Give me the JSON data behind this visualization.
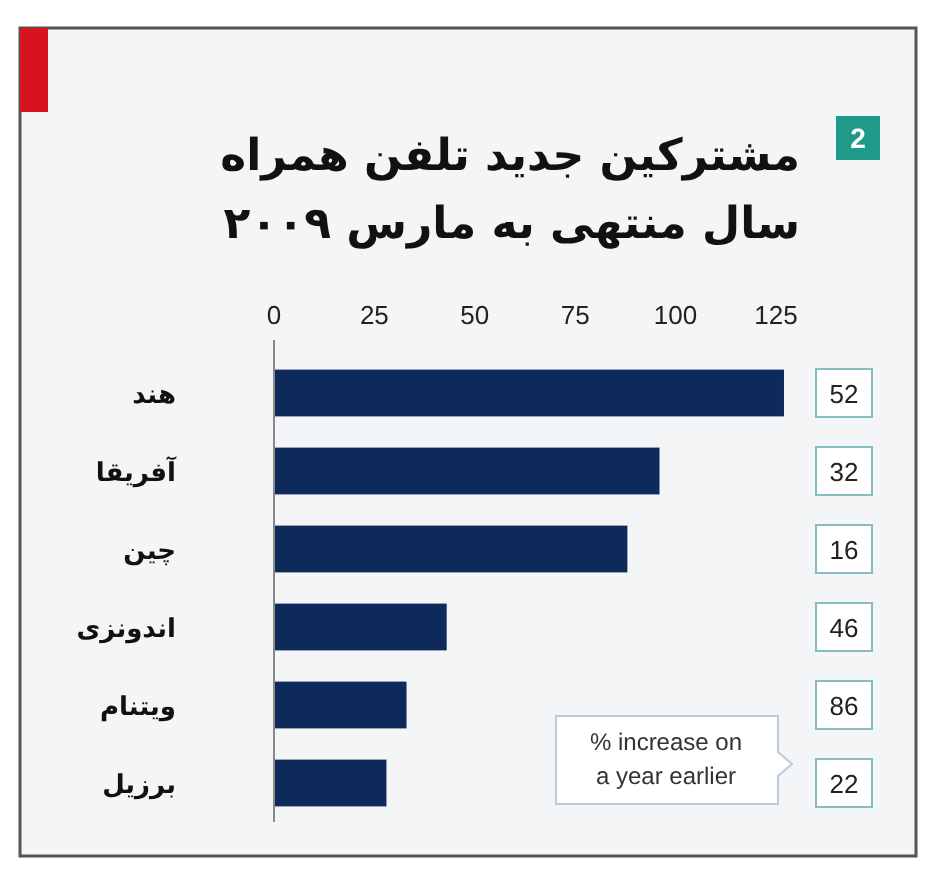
{
  "chart_data": {
    "type": "bar",
    "orientation": "horizontal",
    "title": "مشترکین جدید تلفن همراه\nسال منتهی به مارس ۲۰۰۹",
    "categories": [
      "هند",
      "آفریقا",
      "چین",
      "اندونزی",
      "ویتنام",
      "برزیل"
    ],
    "values": [
      127,
      96,
      88,
      43,
      33,
      28
    ],
    "color": "#0e2a5a",
    "xlim": [
      0,
      128
    ],
    "xticks": [
      0,
      25,
      50,
      75,
      100,
      125
    ],
    "annotations": [
      "2",
      "% increase on\na year earlier",
      "52",
      "32",
      "16",
      "46",
      "86",
      "22"
    ]
  }
}
